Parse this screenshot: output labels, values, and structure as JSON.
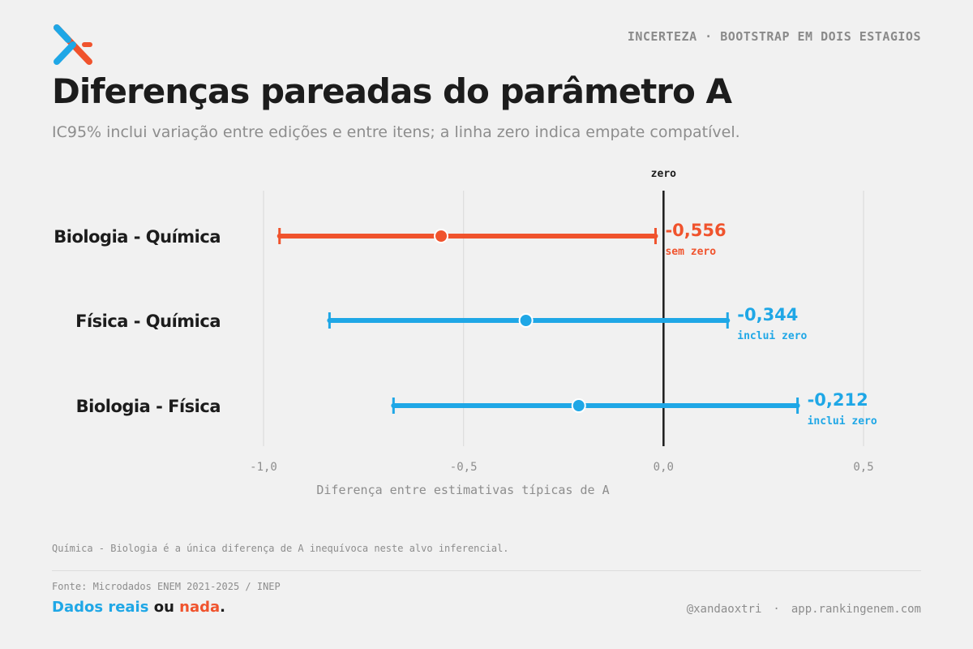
{
  "header": {
    "kicker": "INCERTEZA · BOOTSTRAP EM DOIS ESTAGIOS",
    "title": "Diferenças pareadas do parâmetro A",
    "subtitle": "IC95% inclui variação entre edições e entre itens; a linha zero indica empate compatível."
  },
  "colors": {
    "sig": "#f0532d",
    "nonsig": "#1fa7e6",
    "zero_line": "#1c1c1c",
    "grid": "#dddddd",
    "logo_blue": "#1fa7e6",
    "logo_red": "#f0532d"
  },
  "chart_data": {
    "type": "forest",
    "xlabel": "Diferença entre estimativas típicas de A",
    "xlim": [
      -1.0,
      0.5
    ],
    "xticks": [
      -1.0,
      -0.5,
      0.0,
      0.5
    ],
    "xtick_labels": [
      "-1,0",
      "-0,5",
      "0,0",
      "0,5"
    ],
    "zero_label": "zero",
    "grid": "vertical",
    "rows": [
      {
        "label": "Biologia - Química",
        "estimate": -0.556,
        "lo": -0.96,
        "hi": -0.02,
        "value_label": "-0,556",
        "status": "sem zero",
        "significant": true
      },
      {
        "label": "Física - Química",
        "estimate": -0.344,
        "lo": -0.835,
        "hi": 0.16,
        "value_label": "-0,344",
        "status": "inclui zero",
        "significant": false
      },
      {
        "label": "Biologia - Física",
        "estimate": -0.212,
        "lo": -0.675,
        "hi": 0.335,
        "value_label": "-0,212",
        "status": "inclui zero",
        "significant": false
      }
    ]
  },
  "note": "Química - Biologia é a única diferença de A inequívoca neste alvo inferencial.",
  "source": "Fonte: Microdados ENEM 2021-2025 / INEP",
  "tagline": {
    "part1": "Dados reais",
    "part2": " ou ",
    "part3": "nada",
    "part4": "."
  },
  "footer": {
    "handle": "@xandaoxtri",
    "separator": "·",
    "site": "app.rankingenem.com"
  }
}
